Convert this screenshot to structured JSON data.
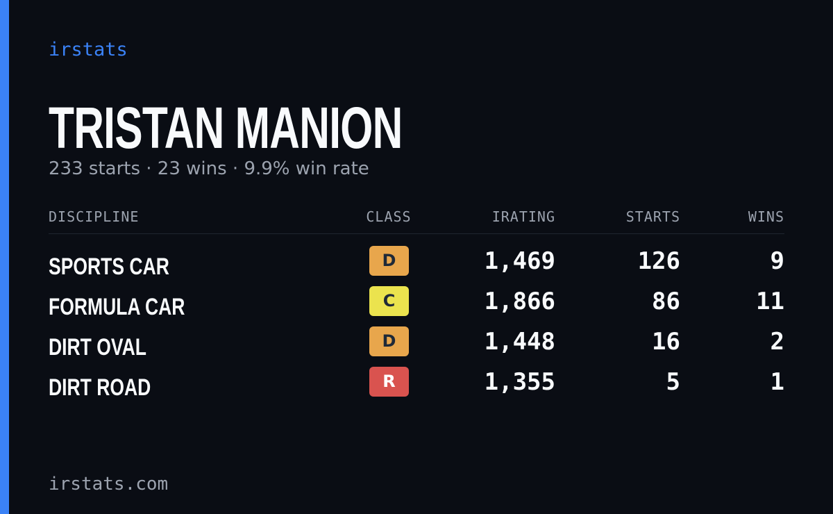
{
  "brand": "irstats",
  "name": "TRISTAN MANION",
  "summary": "233 starts · 23 wins · 9.9% win rate",
  "table": {
    "headers": [
      "DISCIPLINE",
      "CLASS",
      "IRATING",
      "STARTS",
      "WINS"
    ],
    "rows": [
      {
        "discipline": "SPORTS CAR",
        "class": "D",
        "class_color": "#e8a64c",
        "irating": "1,469",
        "starts": "126",
        "wins": "9"
      },
      {
        "discipline": "FORMULA CAR",
        "class": "C",
        "class_color": "#ebe34e",
        "irating": "1,866",
        "starts": "86",
        "wins": "11"
      },
      {
        "discipline": "DIRT OVAL",
        "class": "D",
        "class_color": "#e8a64c",
        "irating": "1,448",
        "starts": "16",
        "wins": "2"
      },
      {
        "discipline": "DIRT ROAD",
        "class": "R",
        "class_color": "#d9534f",
        "irating": "1,355",
        "starts": "5",
        "wins": "1"
      }
    ]
  },
  "footer": "irstats.com"
}
